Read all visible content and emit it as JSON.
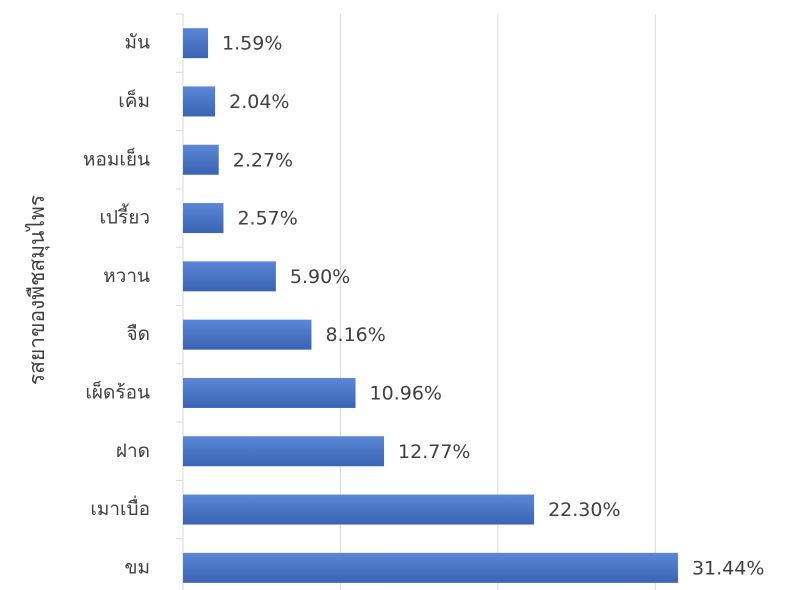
{
  "chart_data": {
    "type": "bar",
    "orientation": "horizontal",
    "y_label": "รสยาของพืชสมุนไพร",
    "categories": [
      "มัน",
      "เค็ม",
      "หอมเย็น",
      "เปรี้ยว",
      "หวาน",
      "จืด",
      "เผ็ดร้อน",
      "ฝาด",
      "เมาเบื่อ",
      "ขม"
    ],
    "values": [
      1.59,
      2.04,
      2.27,
      2.57,
      5.9,
      8.16,
      10.96,
      12.77,
      22.3,
      31.44
    ],
    "value_labels": [
      "1.59%",
      "2.04%",
      "2.27%",
      "2.57%",
      "5.90%",
      "8.16%",
      "10.96%",
      "12.77%",
      "22.30%",
      "31.44%"
    ],
    "color": "#4472c4",
    "xlim": [
      0,
      35
    ],
    "xticks": [
      0,
      10,
      20,
      30
    ],
    "grid": true
  }
}
